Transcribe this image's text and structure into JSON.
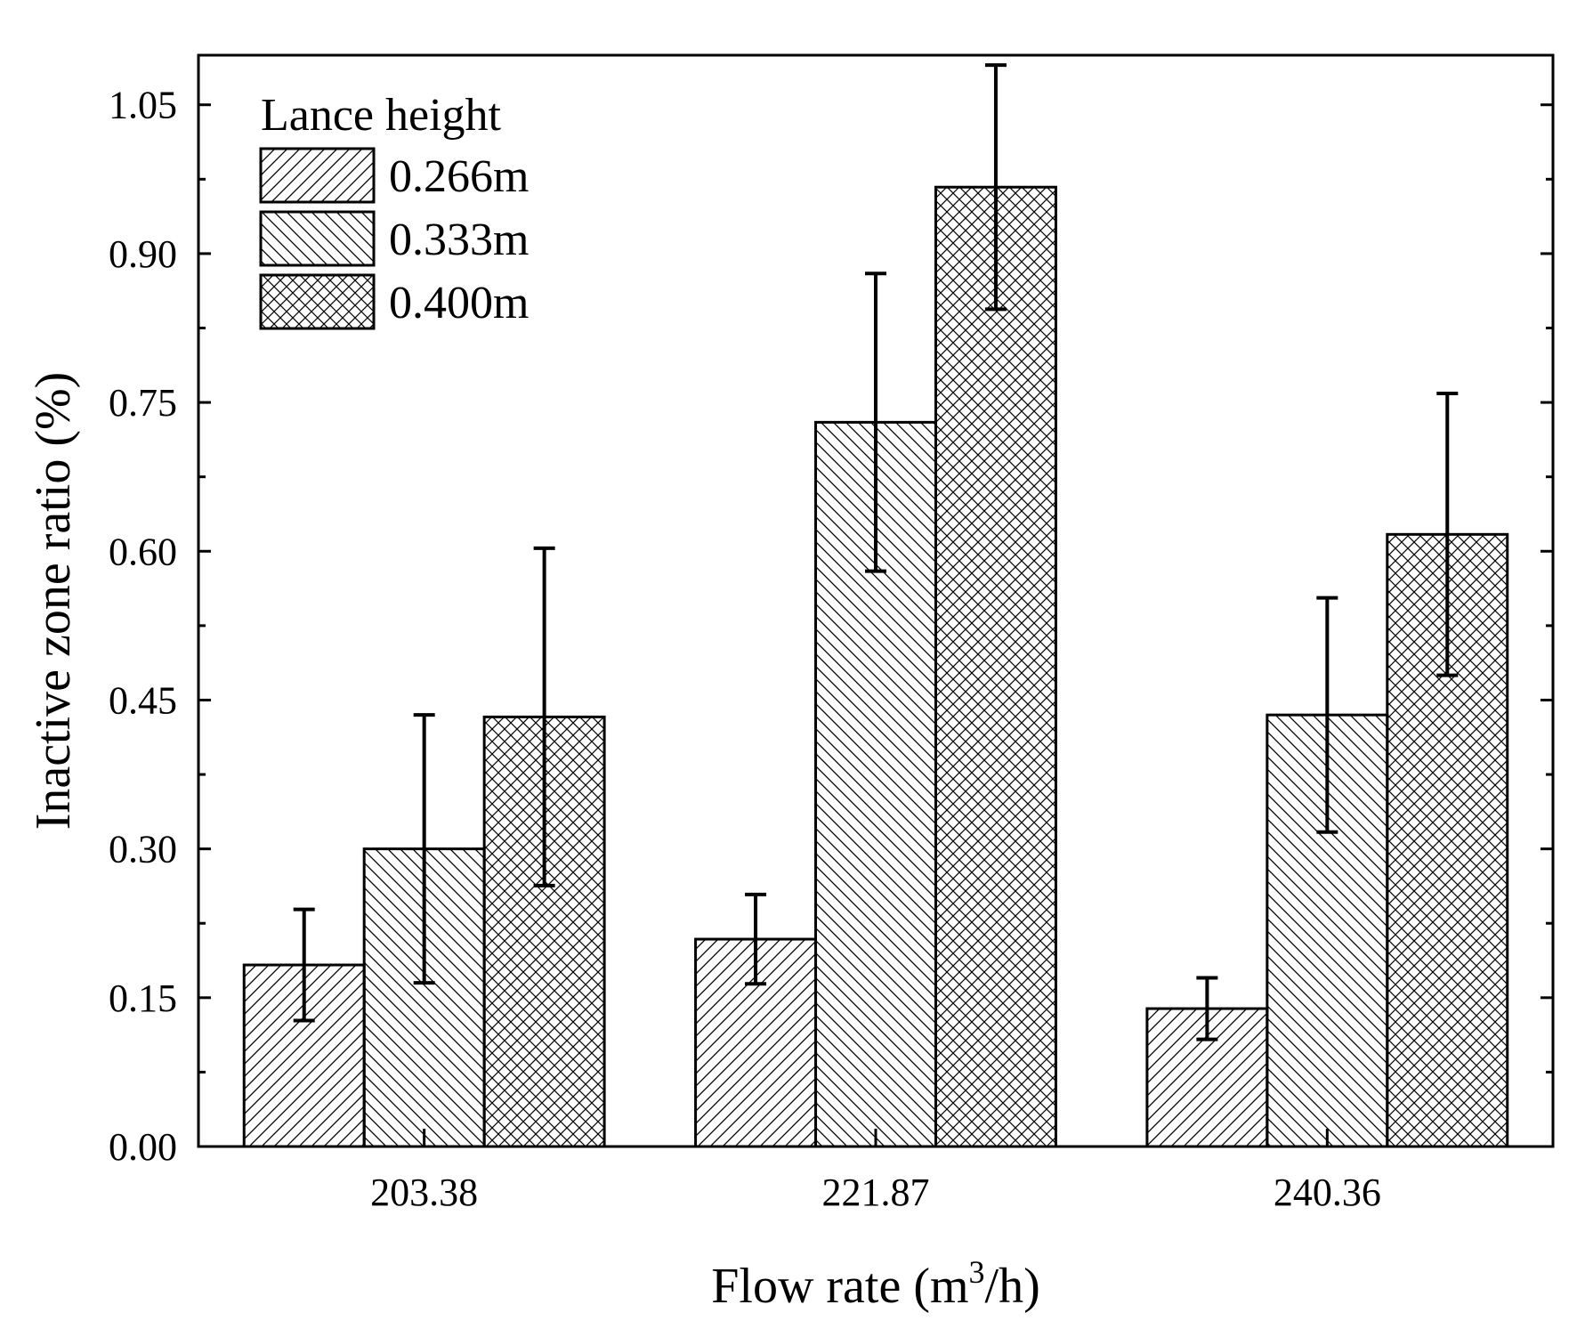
{
  "chart_data": {
    "type": "bar",
    "title": "",
    "categories": [
      "203.38",
      "221.87",
      "240.36"
    ],
    "series": [
      {
        "name": "0.266m",
        "pattern": "diagonal-up",
        "values": [
          0.183,
          0.209,
          0.139
        ],
        "errors": [
          0.056,
          0.045,
          0.031
        ]
      },
      {
        "name": "0.333m",
        "pattern": "diagonal-down",
        "values": [
          0.3,
          0.73,
          0.435
        ],
        "errors": [
          0.135,
          0.15,
          0.118
        ]
      },
      {
        "name": "0.400m",
        "pattern": "crosshatch",
        "values": [
          0.433,
          0.967,
          0.617
        ],
        "errors": [
          0.17,
          0.123,
          0.142
        ]
      }
    ],
    "xlabel_main": "Flow rate (m",
    "xlabel_sup": "3",
    "xlabel_end": "/h)",
    "ylabel": "Inactive zone ratio (%)",
    "ylim": [
      0,
      1.1
    ],
    "yticks": [
      "0.00",
      "0.15",
      "0.30",
      "0.45",
      "0.60",
      "0.75",
      "0.90",
      "1.05"
    ],
    "legend": {
      "title": "Lance height",
      "position": "top-left"
    },
    "grid": false
  }
}
